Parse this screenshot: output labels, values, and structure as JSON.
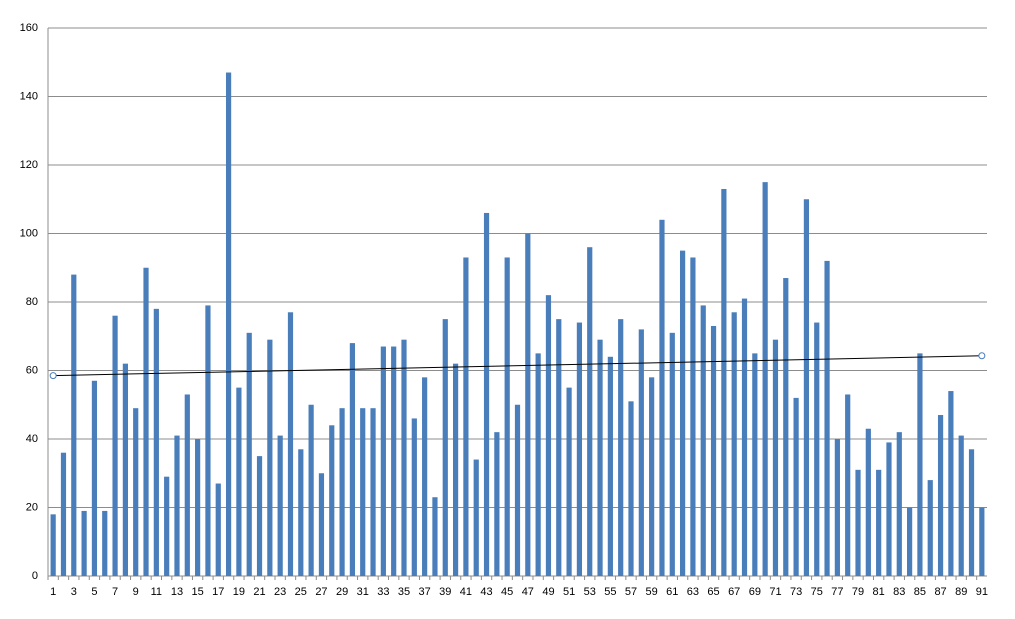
{
  "chart_data": {
    "type": "bar",
    "categories": [
      "1",
      null,
      "3",
      null,
      "5",
      null,
      "7",
      null,
      "9",
      null,
      "11",
      null,
      "13",
      null,
      "15",
      null,
      "17",
      null,
      "19",
      null,
      "21",
      null,
      "23",
      null,
      "25",
      null,
      "27",
      null,
      "29",
      null,
      "31",
      null,
      "33",
      null,
      "35",
      null,
      "37",
      null,
      "39",
      null,
      "41",
      null,
      "43",
      null,
      "45",
      null,
      "47",
      null,
      "49",
      null,
      "51",
      null,
      "53",
      null,
      "55",
      null,
      "57",
      null,
      "59",
      null,
      "61",
      null,
      "63",
      null,
      "65",
      null,
      "67",
      null,
      "69",
      null,
      "71",
      null,
      "73",
      null,
      "75",
      null,
      "77",
      null,
      "79",
      null,
      "81",
      null,
      "83",
      null,
      "85",
      null,
      "87",
      null,
      "89",
      null,
      "91"
    ],
    "values": [
      18,
      36,
      88,
      19,
      57,
      19,
      76,
      62,
      49,
      90,
      78,
      29,
      41,
      53,
      40,
      79,
      27,
      147,
      55,
      71,
      35,
      69,
      41,
      77,
      37,
      50,
      30,
      44,
      49,
      68,
      49,
      49,
      67,
      67,
      69,
      46,
      58,
      23,
      75,
      62,
      93,
      34,
      106,
      42,
      93,
      50,
      100,
      65,
      82,
      75,
      55,
      74,
      96,
      69,
      64,
      75,
      51,
      72,
      58,
      104,
      71,
      95,
      93,
      79,
      73,
      113,
      77,
      81,
      65,
      115,
      69,
      87,
      52,
      110,
      74,
      92,
      40,
      53,
      31,
      43,
      31,
      39,
      42,
      20,
      65,
      28,
      47,
      54,
      41,
      37,
      20
    ],
    "color": "#4a7ebb",
    "ylim": [
      0,
      160
    ],
    "yticks": [
      0,
      20,
      40,
      60,
      80,
      100,
      120,
      140,
      160
    ],
    "grid": true,
    "trendline": {
      "x": [
        1,
        91
      ],
      "values": [
        58.5,
        64.3
      ],
      "color": "#000000"
    }
  }
}
